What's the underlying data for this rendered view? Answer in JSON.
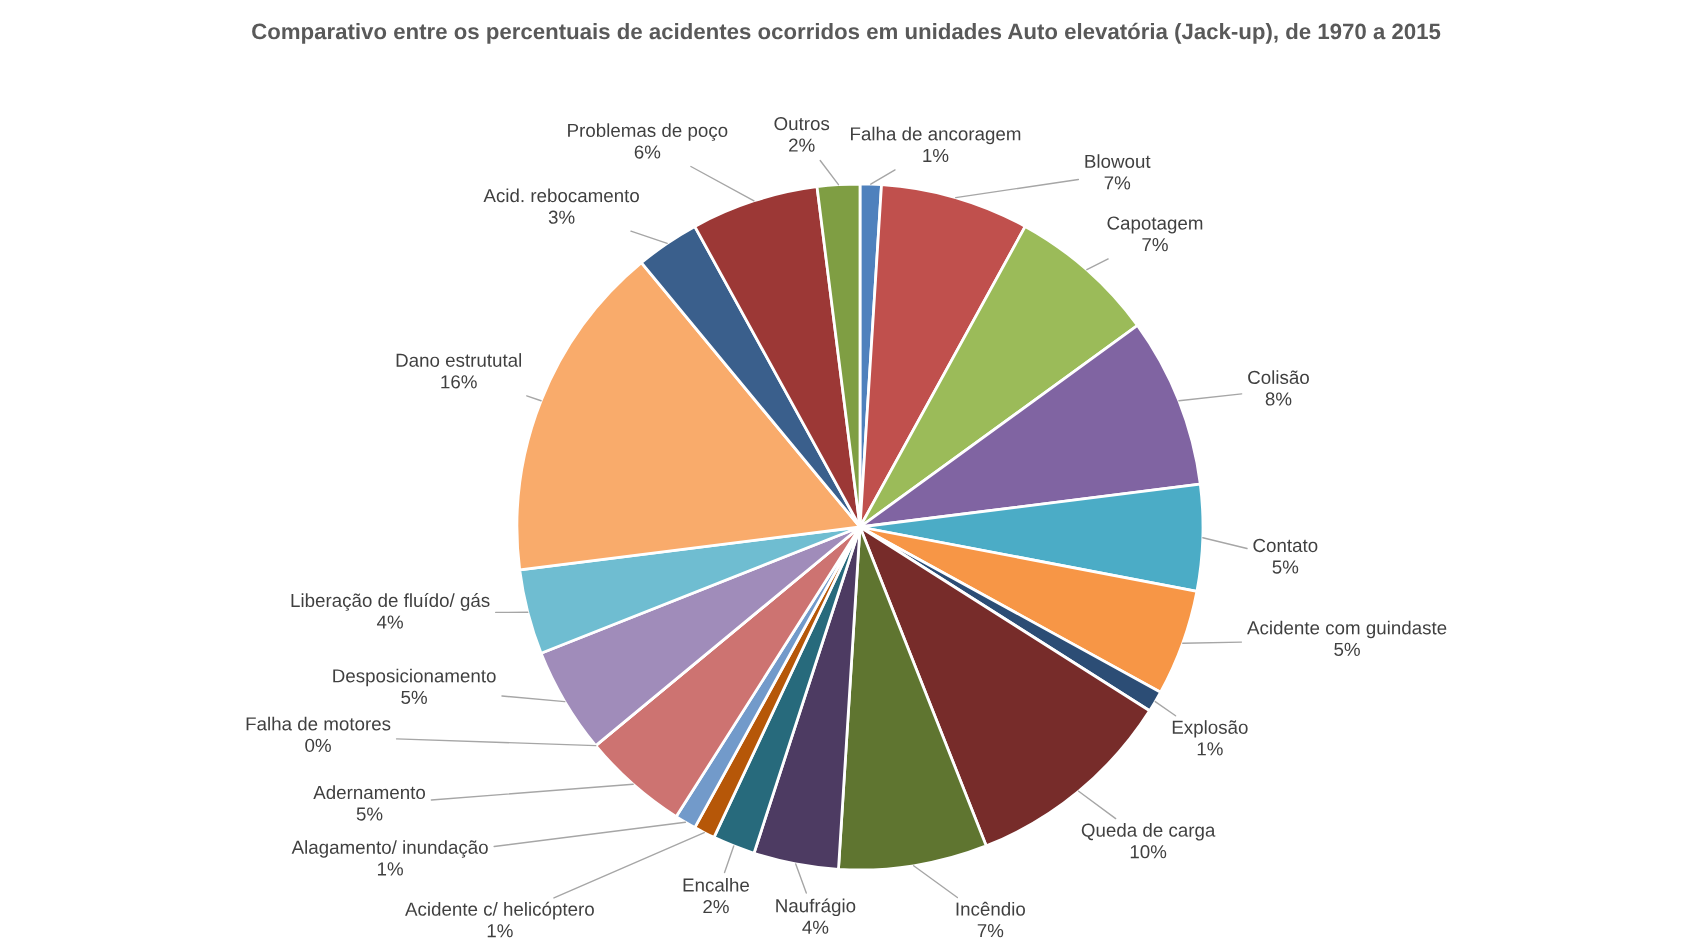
{
  "chart_data": {
    "type": "pie",
    "title": "Comparativo entre os percentuais de acidentes ocorridos em unidades Auto elevatória (Jack-up), de 1970 a 2015",
    "categories": [
      "Falha de ancoragem",
      "Blowout",
      "Capotagem",
      "Colisão",
      "Contato",
      "Acidente com guindaste",
      "Explosão",
      "Queda de carga",
      "Incêndio",
      "Naufrágio",
      "Encalhe",
      "Acidente c/ helicóptero",
      "Alagamento/ inundação",
      "Adernamento",
      "Falha de motores",
      "Desposicionamento",
      "Liberação de fluído/ gás",
      "Dano estrututal",
      "Acid. rebocamento",
      "Problemas de poço",
      "Outros"
    ],
    "values": [
      1,
      7,
      7,
      8,
      5,
      5,
      1,
      10,
      7,
      4,
      2,
      1,
      1,
      5,
      0,
      5,
      4,
      16,
      3,
      6,
      2
    ],
    "value_labels": [
      "1%",
      "7%",
      "7%",
      "8%",
      "5%",
      "5%",
      "1%",
      "10%",
      "7%",
      "4%",
      "2%",
      "1%",
      "1%",
      "5%",
      "0%",
      "5%",
      "4%",
      "16%",
      "3%",
      "6%",
      "2%"
    ],
    "colors": [
      "#4f81bd",
      "#c0504d",
      "#9bbb59",
      "#8064a2",
      "#4bacc6",
      "#f79646",
      "#2c4d75",
      "#772c2a",
      "#5f7530",
      "#4d3b62",
      "#276a7c",
      "#b65708",
      "#729aca",
      "#cd7371",
      "#afc97a",
      "#a08cba",
      "#6fbdd1",
      "#f9ab6b",
      "#3a5f8c",
      "#9c3836",
      "#7f9e43"
    ]
  }
}
